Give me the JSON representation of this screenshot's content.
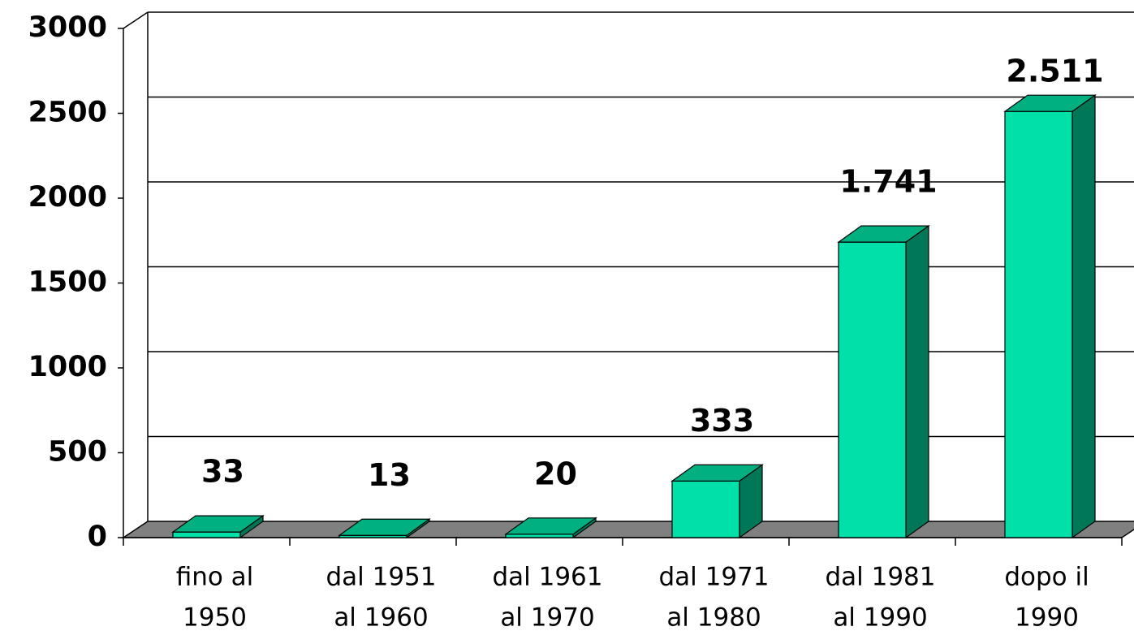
{
  "chart_data": {
    "type": "bar3d",
    "categories": [
      [
        "fino al",
        "1950"
      ],
      [
        "dal 1951",
        "al 1960"
      ],
      [
        "dal 1961",
        "al 1970"
      ],
      [
        "dal 1971",
        "al 1980"
      ],
      [
        "dal 1981",
        "al 1990"
      ],
      [
        "dopo il",
        "1990"
      ]
    ],
    "values": [
      33,
      13,
      20,
      333,
      1741,
      2511
    ],
    "value_labels": [
      "33",
      "13",
      "20",
      "333",
      "1.741",
      "2.511"
    ],
    "color": "#00e0a8",
    "ylim": [
      0,
      3000
    ],
    "yticks": [
      0,
      500,
      1000,
      1500,
      2000,
      2500,
      3000
    ],
    "grid": true
  }
}
